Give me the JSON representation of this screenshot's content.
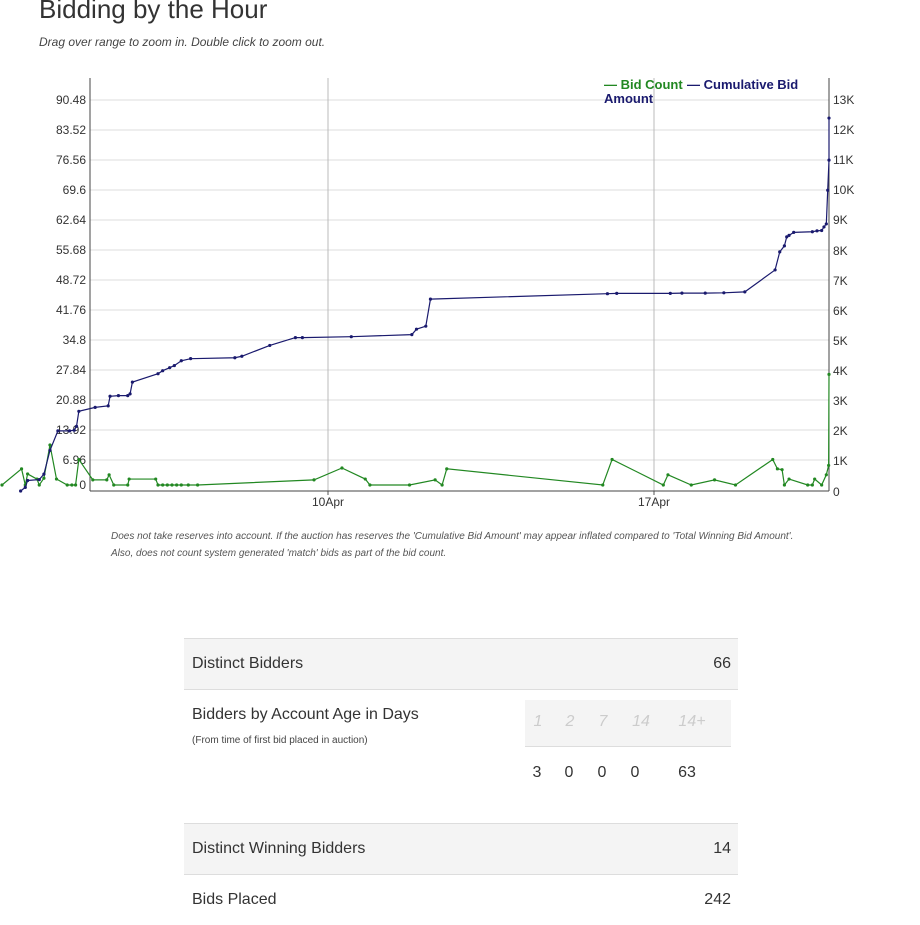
{
  "page": {
    "title": "Bidding by the Hour",
    "subtitle": "Drag over range to zoom in. Double click to zoom out."
  },
  "chart_data": {
    "type": "line",
    "legend": {
      "placement": "top-right",
      "entries": [
        {
          "label": "— Bid Count",
          "color": "#228822"
        },
        {
          "label": "— Cumulative Bid Amount",
          "color": "#1a1a6e"
        }
      ]
    },
    "x_ticks": [
      "10Apr",
      "17Apr"
    ],
    "y_left": {
      "ticks": [
        "90.48",
        "83.52",
        "76.56",
        "69.6",
        "62.64",
        "55.68",
        "48.72",
        "41.76",
        "34.8",
        "27.84",
        "20.88",
        "13.92",
        "6.96",
        "0"
      ],
      "range": [
        0,
        94
      ]
    },
    "y_right": {
      "ticks": [
        "13K",
        "12K",
        "11K",
        "10K",
        "9K",
        "8K",
        "7K",
        "6K",
        "5K",
        "4K",
        "3K",
        "2K",
        "1K",
        "0"
      ],
      "range": [
        0,
        13500
      ]
    },
    "x_range_days": [
      -7.0,
      8.8
    ],
    "x_tick_days": [
      0,
      7
    ],
    "series": [
      {
        "name": "Bid Count",
        "color": "#228822",
        "axis": "left",
        "points": [
          [
            -7.0,
            0
          ],
          [
            -6.58,
            3.8
          ],
          [
            -6.5,
            0
          ],
          [
            -6.45,
            2.6
          ],
          [
            -6.25,
            1.4
          ],
          [
            -6.2,
            0
          ],
          [
            -6.1,
            1.6
          ],
          [
            -5.97,
            9.4
          ],
          [
            -5.83,
            1.4
          ],
          [
            -5.6,
            0
          ],
          [
            -5.5,
            0
          ],
          [
            -5.42,
            0
          ],
          [
            -5.35,
            6
          ],
          [
            -5.05,
            1.2
          ],
          [
            -4.75,
            1.2
          ],
          [
            -4.7,
            2.4
          ],
          [
            -4.6,
            0
          ],
          [
            -4.3,
            0
          ],
          [
            -4.27,
            1.4
          ],
          [
            -3.7,
            1.4
          ],
          [
            -3.65,
            0
          ],
          [
            -3.55,
            0
          ],
          [
            -3.45,
            0
          ],
          [
            -3.35,
            0
          ],
          [
            -3.25,
            0
          ],
          [
            -3.15,
            0
          ],
          [
            -3.0,
            0
          ],
          [
            -2.8,
            0
          ],
          [
            -0.3,
            1.2
          ],
          [
            0.3,
            4
          ],
          [
            0.8,
            1.4
          ],
          [
            0.9,
            0
          ],
          [
            1.75,
            0
          ],
          [
            2.3,
            1.2
          ],
          [
            2.45,
            0
          ],
          [
            2.55,
            3.8
          ],
          [
            5.9,
            0
          ],
          [
            6.1,
            6
          ],
          [
            7.2,
            0
          ],
          [
            7.3,
            2.4
          ],
          [
            7.8,
            0
          ],
          [
            8.3,
            1.2
          ],
          [
            8.75,
            0
          ],
          [
            9.55,
            6
          ],
          [
            9.65,
            3.8
          ],
          [
            9.75,
            3.6
          ],
          [
            9.8,
            0
          ],
          [
            9.9,
            1.4
          ],
          [
            10.3,
            0
          ],
          [
            10.4,
            0
          ],
          [
            10.45,
            1.4
          ],
          [
            10.6,
            0
          ],
          [
            10.7,
            2.4
          ],
          [
            10.75,
            4.6
          ],
          [
            10.78,
            26
          ]
        ]
      },
      {
        "name": "Cumulative Bid Amount",
        "color": "#1a1a6e",
        "axis": "right",
        "points": [
          [
            -6.6,
            0
          ],
          [
            -6.5,
            120
          ],
          [
            -6.45,
            350
          ],
          [
            -6.2,
            380
          ],
          [
            -6.1,
            560
          ],
          [
            -5.97,
            1350
          ],
          [
            -5.8,
            2000
          ],
          [
            -5.55,
            2000
          ],
          [
            -5.45,
            2020
          ],
          [
            -5.4,
            2150
          ],
          [
            -5.35,
            2650
          ],
          [
            -5.0,
            2780
          ],
          [
            -4.72,
            2830
          ],
          [
            -4.68,
            3150
          ],
          [
            -4.5,
            3170
          ],
          [
            -4.3,
            3170
          ],
          [
            -4.25,
            3230
          ],
          [
            -4.2,
            3620
          ],
          [
            -3.65,
            3900
          ],
          [
            -3.55,
            4000
          ],
          [
            -3.4,
            4100
          ],
          [
            -3.3,
            4170
          ],
          [
            -3.15,
            4330
          ],
          [
            -2.95,
            4400
          ],
          [
            -2.0,
            4430
          ],
          [
            -1.85,
            4480
          ],
          [
            -1.25,
            4840
          ],
          [
            -0.7,
            5100
          ],
          [
            -0.55,
            5100
          ],
          [
            0.5,
            5130
          ],
          [
            1.8,
            5200
          ],
          [
            1.9,
            5380
          ],
          [
            2.1,
            5480
          ],
          [
            2.2,
            6380
          ],
          [
            6.0,
            6560
          ],
          [
            6.2,
            6570
          ],
          [
            7.35,
            6570
          ],
          [
            7.6,
            6580
          ],
          [
            8.1,
            6580
          ],
          [
            8.5,
            6590
          ],
          [
            8.95,
            6620
          ],
          [
            9.6,
            7350
          ],
          [
            9.7,
            7950
          ],
          [
            9.8,
            8150
          ],
          [
            9.85,
            8450
          ],
          [
            9.9,
            8500
          ],
          [
            10.0,
            8600
          ],
          [
            10.4,
            8620
          ],
          [
            10.5,
            8650
          ],
          [
            10.6,
            8660
          ],
          [
            10.65,
            8780
          ],
          [
            10.7,
            8880
          ],
          [
            10.73,
            10000
          ],
          [
            10.76,
            11000
          ],
          [
            10.78,
            12400
          ]
        ]
      }
    ]
  },
  "notes": [
    "Does not take reserves into account. If the auction has reserves the 'Cumulative Bid Amount' may appear inflated compared to 'Total Winning Bid Amount'.",
    "Also, does not count system generated 'match' bids as part of the bid count."
  ],
  "stats": {
    "distinct_bidders": {
      "label": "Distinct Bidders",
      "value": "66"
    },
    "account_age": {
      "label": "Bidders by Account Age in Days",
      "sub": "(From time of first bid placed in auction)",
      "headers": [
        "1",
        "2",
        "7",
        "14",
        "14+"
      ],
      "values": [
        "3",
        "0",
        "0",
        "0",
        "63"
      ]
    },
    "distinct_winning_bidders": {
      "label": "Distinct Winning Bidders",
      "value": "14"
    },
    "bids_placed": {
      "label": "Bids Placed",
      "value": "242"
    }
  }
}
